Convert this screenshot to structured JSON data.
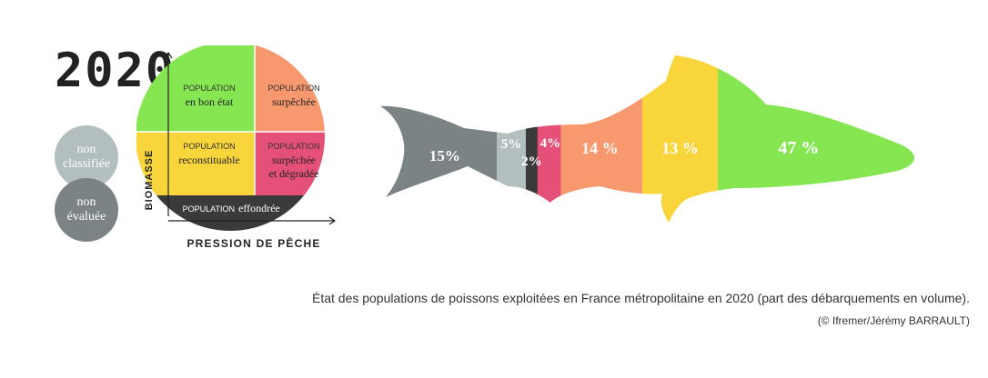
{
  "year": "2020",
  "badges": {
    "non_classified": "non\nclassifiée",
    "non_evaluated": "non\névaluée"
  },
  "legend": {
    "good_top": "POPULATION",
    "good_bottom": "en bon état",
    "over_top": "POPULATION",
    "over_bottom": "surpêchée",
    "recon_top": "POPULATION",
    "recon_bottom": "reconstituable",
    "overdeg_top": "POPULATION",
    "overdeg_line1": "surpêchée",
    "overdeg_line2": "et dégradée",
    "collapsed_top": "POPULATION",
    "collapsed_bottom": "effondrée",
    "y_axis": "BIOMASSE",
    "x_axis": "PRESSION DE PÊCHE"
  },
  "colors": {
    "good": "#86e652",
    "overfished": "#f7986e",
    "rebuildable": "#f9d53c",
    "overfished_degraded": "#e45078",
    "collapsed": "#3a3a3a",
    "non_classified": "#b3bfbf",
    "non_evaluated": "#7b8384"
  },
  "chart_data": {
    "type": "bar",
    "categories": [
      "non évaluée",
      "non classifiée",
      "effondrée",
      "surpêchée et dégradée",
      "surpêchée",
      "reconstituable",
      "en bon état"
    ],
    "values": [
      15,
      5,
      2,
      4,
      14,
      13,
      47
    ],
    "labels": [
      "15%",
      "5%",
      "2%",
      "4%",
      "14 %",
      "13 %",
      "47 %"
    ],
    "unit": "%"
  },
  "caption": "État des populations de poissons exploitées en France métropolitaine en 2020 (part des débarquements en volume).",
  "credit": "(© Ifremer/Jérémy BARRAULT)"
}
